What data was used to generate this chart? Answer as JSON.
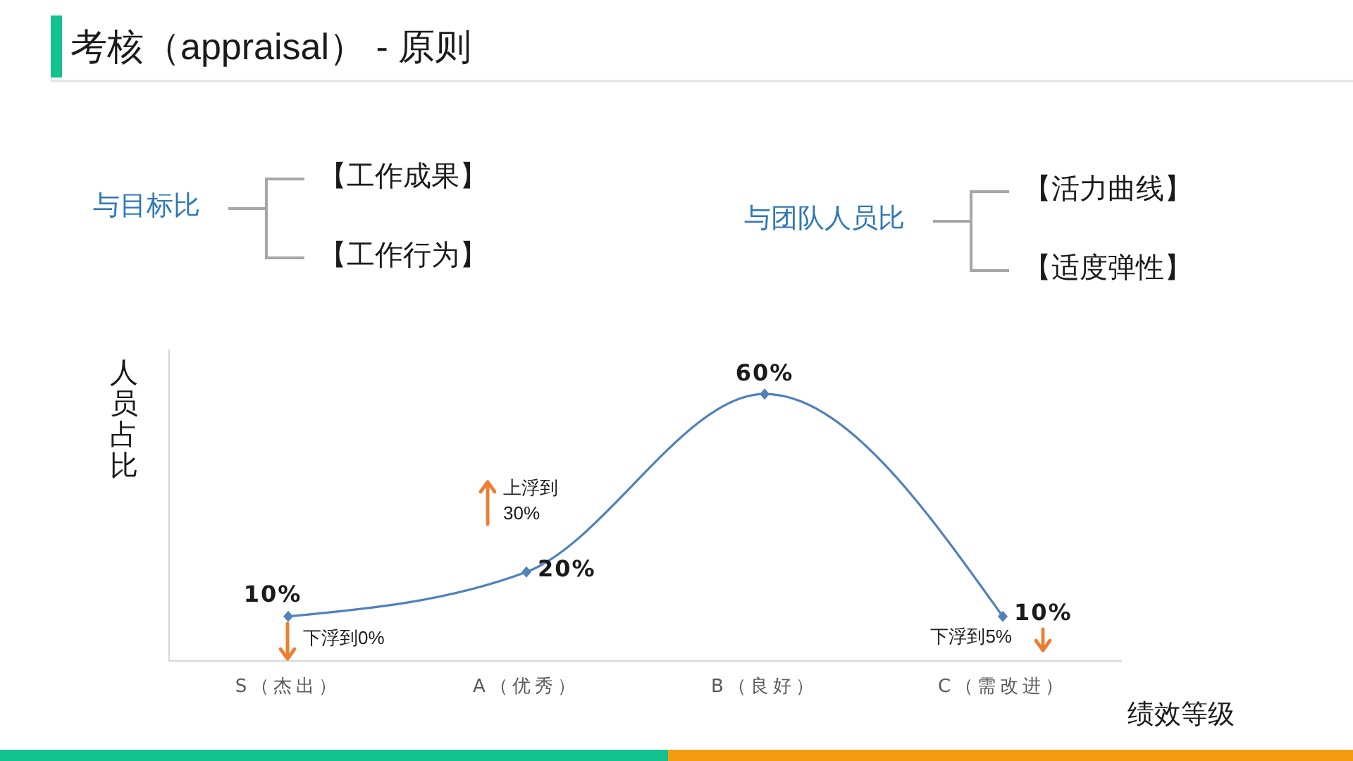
{
  "chart_data": {
    "type": "line",
    "title": "考核（appraisal） - 原则",
    "xlabel": "绩效等级",
    "ylabel": "人员占比",
    "categories": [
      "S（杰出）",
      "A（优秀）",
      "B（良好）",
      "C（需改进）"
    ],
    "values": [
      10,
      20,
      60,
      10
    ],
    "color": "#4f81bd",
    "value_labels": [
      "10%",
      "20%",
      "60%",
      "10%"
    ],
    "ylim": [
      0,
      70
    ],
    "tick_labels": "x",
    "marker": "diamond",
    "line_style": "solid",
    "annotations": [
      "与目标比",
      "【工作成果】",
      "【工作行为】",
      "与团队人员比",
      "【活力曲线】",
      "【适度弹性】",
      "下浮到0%",
      "上浮到\n30%",
      "下浮到5%"
    ]
  }
}
